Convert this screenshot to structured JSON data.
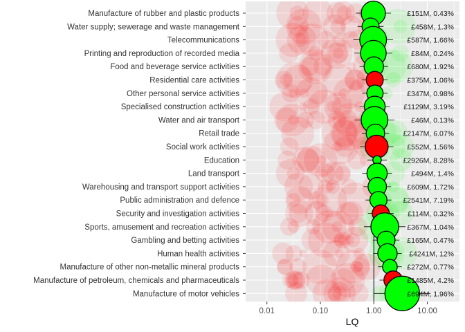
{
  "chart_data": {
    "type": "scatter",
    "xlabel": "LQ",
    "x_scale": "log",
    "xlim": [
      0.004,
      40
    ],
    "x_ticks": [
      "0.01",
      "0.10",
      "1.00",
      "10.00"
    ],
    "x_tick_values": [
      0.01,
      0.1,
      1,
      10
    ],
    "grid": true,
    "reference_line_x": 1,
    "colors": {
      "above": "#00ff00",
      "below": "#ff0000",
      "panel": "#ebebeb",
      "grid": "#ffffff"
    },
    "sectors": [
      {
        "name": "Manufacture of rubber and plastic products",
        "lq": 0.98,
        "size": 0.43,
        "label": "£151M, 0.43%"
      },
      {
        "name": "Water supply; sewerage and waste management",
        "lq": 0.87,
        "size": 0.18,
        "label": "£458M, 1.3%"
      },
      {
        "name": "Telecommunications",
        "lq": 0.97,
        "size": 0.55,
        "label": "£587M, 1.66%"
      },
      {
        "name": "Printing and reproduction of recorded media",
        "lq": 0.98,
        "size": 0.5,
        "label": "£84M, 0.24%"
      },
      {
        "name": "Food and beverage service activities",
        "lq": 1.0,
        "size": 0.25,
        "label": "£680M, 1.92%"
      },
      {
        "name": "Residential care activities",
        "lq": 1.04,
        "size": 0.18,
        "label": "£375M, 1.06%"
      },
      {
        "name": "Other personal service activities",
        "lq": 1.05,
        "size": 0.16,
        "label": "£347M, 0.98%"
      },
      {
        "name": "Specialised construction activities",
        "lq": 1.04,
        "size": 0.3,
        "label": "£1129M, 3.19%"
      },
      {
        "name": "Water and air transport",
        "lq": 1.03,
        "size": 0.55,
        "label": "£46M, 0.13%"
      },
      {
        "name": "Retail trade",
        "lq": 1.07,
        "size": 0.22,
        "label": "£2147M, 6.07%"
      },
      {
        "name": "Social work activities",
        "lq": 1.13,
        "size": 0.38,
        "label": "£552M, 1.56%"
      },
      {
        "name": "Education",
        "lq": 1.15,
        "size": 0.02,
        "label": "£2926M, 8.28%"
      },
      {
        "name": "Land transport",
        "lq": 1.15,
        "size": 0.28,
        "label": "£494M, 1.4%"
      },
      {
        "name": "Warehousing and transport support activities",
        "lq": 1.16,
        "size": 0.22,
        "label": "£609M, 1.72%"
      },
      {
        "name": "Public administration and defence",
        "lq": 1.22,
        "size": 0.18,
        "label": "£2541M, 7.19%"
      },
      {
        "name": "Security and investigation activities",
        "lq": 1.35,
        "size": 0.18,
        "label": "£114M, 0.32%"
      },
      {
        "name": "Sports, amusement and recreation activities",
        "lq": 1.6,
        "size": 0.6,
        "label": "£367M, 1.04%"
      },
      {
        "name": "Gambling and betting activities",
        "lq": 1.7,
        "size": 0.2,
        "label": "£165M, 0.47%"
      },
      {
        "name": "Human health activities",
        "lq": 1.8,
        "size": 0.25,
        "label": "£4241M, 12%"
      },
      {
        "name": "Manufacture of other non-metallic mineral products",
        "lq": 2.0,
        "size": 0.12,
        "label": "£272M, 0.77%"
      },
      {
        "name": "Manufacture of petroleum, chemicals and pharmaceuticals",
        "lq": 2.3,
        "size": 0.22,
        "label": "£1485M, 4.2%"
      },
      {
        "name": "Manufacture of motor vehicles",
        "lq": 3.4,
        "size": 1.0,
        "label": "£694M, 1.96%"
      }
    ]
  }
}
